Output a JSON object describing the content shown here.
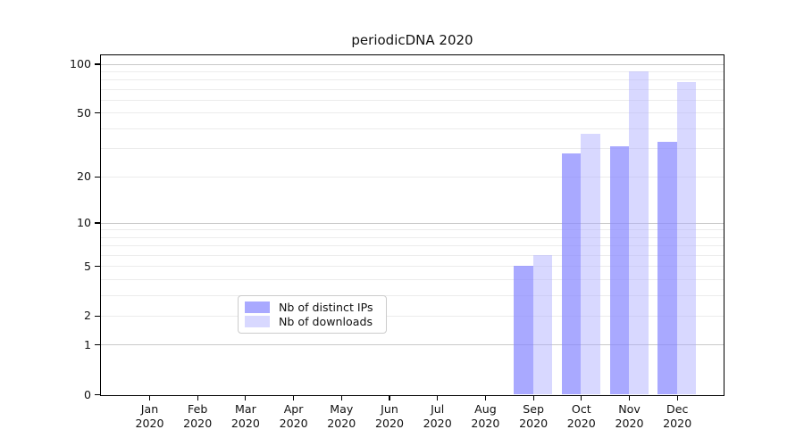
{
  "title": "periodicDNA 2020",
  "chart_data": {
    "type": "bar",
    "title": "periodicDNA 2020",
    "categories": [
      {
        "month": "Jan",
        "year": "2020"
      },
      {
        "month": "Feb",
        "year": "2020"
      },
      {
        "month": "Mar",
        "year": "2020"
      },
      {
        "month": "Apr",
        "year": "2020"
      },
      {
        "month": "May",
        "year": "2020"
      },
      {
        "month": "Jun",
        "year": "2020"
      },
      {
        "month": "Jul",
        "year": "2020"
      },
      {
        "month": "Aug",
        "year": "2020"
      },
      {
        "month": "Sep",
        "year": "2020"
      },
      {
        "month": "Oct",
        "year": "2020"
      },
      {
        "month": "Nov",
        "year": "2020"
      },
      {
        "month": "Dec",
        "year": "2020"
      }
    ],
    "series": [
      {
        "name": "Nb of distinct IPs",
        "color": "rgba(136,136,255,0.72)",
        "values": [
          0,
          0,
          0,
          0,
          0,
          0,
          0,
          0,
          5,
          28,
          31,
          33
        ]
      },
      {
        "name": "Nb of downloads",
        "color": "rgba(170,170,255,0.46)",
        "values": [
          0,
          0,
          0,
          0,
          0,
          0,
          0,
          0,
          6,
          37,
          90,
          77
        ]
      }
    ],
    "y_scale": "log1p",
    "y_ticks": [
      0,
      1,
      2,
      5,
      10,
      20,
      50,
      100
    ],
    "y_major_gridlines": [
      1,
      10,
      100
    ],
    "y_minor_gridlines": [
      2,
      3,
      4,
      5,
      6,
      7,
      8,
      9,
      20,
      30,
      40,
      50,
      60,
      70,
      80,
      90
    ],
    "ylim": [
      0,
      112.7
    ],
    "grid": "on",
    "legend_position": "lower center inside plot"
  },
  "colors": {
    "grid_minor": "#ececec",
    "grid_major": "#c9c9c9",
    "spine": "#000000",
    "text": "#111111"
  }
}
